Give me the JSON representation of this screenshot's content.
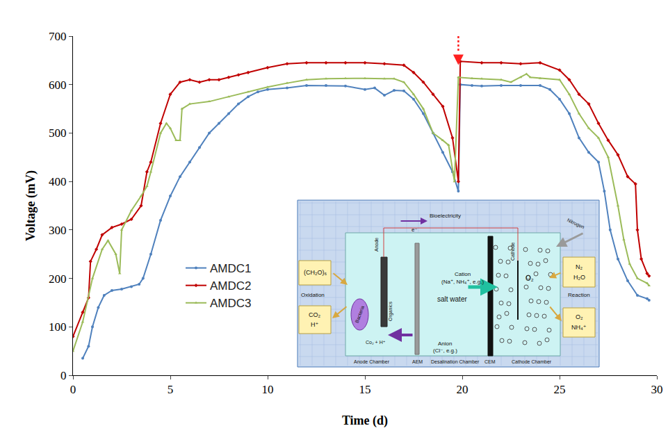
{
  "chart_data": {
    "type": "line",
    "x_label": "Time (d)",
    "y_label": "Voltage (mV)",
    "xlim": [
      0,
      30
    ],
    "xticks": [
      0,
      5,
      10,
      15,
      20,
      25,
      30
    ],
    "ylim": [
      0,
      700
    ],
    "yticks": [
      0,
      100,
      200,
      300,
      400,
      500,
      600,
      700
    ],
    "grid": false,
    "legend": "left",
    "arrow_at": 19.8,
    "series": [
      {
        "name": "AMDC1",
        "color": "#4f81bd",
        "marker": "circle",
        "x": [
          0.5,
          0.8,
          1,
          1.3,
          1.6,
          2,
          2.5,
          3,
          3.4,
          3.6,
          4,
          4.5,
          5,
          5.5,
          6,
          6.5,
          7,
          7.5,
          8,
          8.5,
          9,
          9.5,
          10,
          11,
          12,
          13,
          14,
          15,
          15.5,
          16,
          16.5,
          17,
          17.5,
          18,
          18.5,
          19,
          19.5,
          19.8,
          19.9,
          20.5,
          21,
          22,
          23,
          24,
          24.5,
          25,
          25.5,
          26,
          26.5,
          27,
          27.3,
          27.6,
          28,
          28.5,
          29,
          29.5,
          29.6
        ],
        "values": [
          35,
          60,
          100,
          140,
          165,
          175,
          178,
          183,
          188,
          200,
          250,
          320,
          370,
          410,
          440,
          470,
          500,
          520,
          540,
          560,
          575,
          585,
          590,
          593,
          598,
          598,
          597,
          590,
          593,
          578,
          588,
          587,
          570,
          540,
          500,
          460,
          420,
          380,
          600,
          598,
          597,
          598,
          598,
          598,
          590,
          570,
          540,
          490,
          460,
          440,
          380,
          300,
          240,
          195,
          165,
          158,
          155
        ]
      },
      {
        "name": "AMDC2",
        "color": "#c00000",
        "marker": "diamond",
        "x": [
          0,
          0.5,
          0.8,
          0.9,
          1.2,
          1.5,
          2,
          2.5,
          3,
          3.5,
          3.8,
          4,
          4.5,
          5,
          5.5,
          6,
          6.5,
          7,
          7.5,
          8,
          8.5,
          9,
          10,
          11,
          12,
          13,
          14,
          15,
          16,
          17,
          17.5,
          18,
          18.5,
          19,
          19.5,
          19.8,
          19.9,
          21,
          22,
          23,
          24,
          25,
          25.5,
          26,
          26.5,
          27,
          27.5,
          28,
          28.5,
          28.9,
          29,
          29.2,
          29.5,
          29.6
        ],
        "values": [
          80,
          130,
          160,
          235,
          260,
          290,
          305,
          312,
          322,
          350,
          420,
          440,
          520,
          580,
          605,
          610,
          605,
          610,
          610,
          615,
          620,
          625,
          635,
          643,
          645,
          645,
          645,
          645,
          643,
          640,
          625,
          605,
          580,
          555,
          490,
          400,
          648,
          645,
          645,
          643,
          645,
          630,
          610,
          580,
          560,
          520,
          485,
          455,
          410,
          395,
          300,
          240,
          210,
          205
        ]
      },
      {
        "name": "AMDC3",
        "color": "#9bbb59",
        "marker": "triangle-up",
        "x": [
          0,
          0.5,
          1,
          1.5,
          1.8,
          2.2,
          2.4,
          2.5,
          3,
          3.5,
          3.8,
          4,
          4.5,
          4.8,
          5,
          5.3,
          5.5,
          5.6,
          6,
          7,
          8,
          9,
          10,
          11,
          12,
          13,
          14,
          15,
          16,
          16.5,
          17,
          17.5,
          18,
          18.5,
          19,
          19.3,
          19.6,
          19.8,
          20.5,
          21,
          22,
          22.5,
          23,
          23.3,
          23.5,
          24,
          25,
          25.5,
          26,
          26.5,
          27,
          27.5,
          28,
          28.3,
          28.6,
          29,
          29.5,
          29.6
        ],
        "values": [
          50,
          110,
          200,
          260,
          278,
          250,
          210,
          300,
          340,
          370,
          390,
          420,
          500,
          520,
          510,
          485,
          485,
          550,
          560,
          565,
          575,
          585,
          595,
          603,
          610,
          612,
          613,
          613,
          612,
          612,
          605,
          580,
          550,
          500,
          485,
          475,
          400,
          615,
          613,
          612,
          610,
          605,
          615,
          622,
          615,
          613,
          610,
          580,
          540,
          510,
          490,
          450,
          350,
          280,
          230,
          200,
          190,
          185
        ]
      }
    ]
  },
  "inset": {
    "substrate": "(CH₂O)₆",
    "oxidation": "Oxidation",
    "co2": "CO₂",
    "h_plus": "H⁺",
    "bacteria": "Bacteria",
    "organics": "Organics",
    "products": "Co₂ + H⁺",
    "anode": "Anode",
    "bioelectricity": "Bioelectricity",
    "electron": "e⁻",
    "cation": "Cation",
    "cation_ions": "(Na⁺, NH₄⁺, e.g.)",
    "salt_water": "salt water",
    "anion": "Anion",
    "anion_ions": "(Cl⁻, e.g.)",
    "oxygen": "O₂",
    "cathode": "Cathode",
    "nitrogen": "Nitrogen",
    "n2": "N₂",
    "h2o": "H₂O",
    "reaction": "Reaction",
    "o2_in": "O₂",
    "nh4": "NH₄⁺",
    "anode_chamber": "Anode Chamber",
    "aem": "AEM",
    "desalination_chamber": "Desalination Chamber",
    "cem": "CEM",
    "cathode_chamber": "Cathode Chamber"
  }
}
